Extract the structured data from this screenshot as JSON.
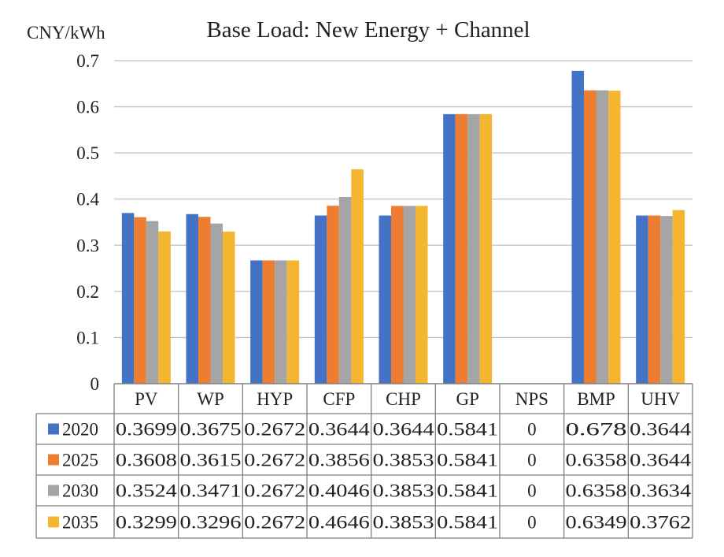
{
  "chart_data": {
    "type": "bar",
    "title": "Base Load: New Energy + Channel",
    "ylabel": "CNY/kWh",
    "xlabel": "",
    "categories": [
      "PV",
      "WP",
      "HYP",
      "CFP",
      "CHP",
      "GP",
      "NPS",
      "BMP",
      "UHV"
    ],
    "ylim": [
      0,
      0.7
    ],
    "yticks": [
      "0",
      "0.1",
      "0.2",
      "0.3",
      "0.4",
      "0.5",
      "0.6",
      "0.7"
    ],
    "grid": true,
    "legend": "bottom-left",
    "data_table": true,
    "series": [
      {
        "name": "2020",
        "color": "#4472C4",
        "values": [
          0.3699,
          0.3675,
          0.2672,
          0.3644,
          0.3644,
          0.5841,
          0,
          0.678,
          0.3644
        ]
      },
      {
        "name": "2025",
        "color": "#ED7D31",
        "values": [
          0.3608,
          0.3615,
          0.2672,
          0.3856,
          0.3853,
          0.5841,
          0,
          0.6358,
          0.3644
        ]
      },
      {
        "name": "2030",
        "color": "#A5A5A5",
        "values": [
          0.3524,
          0.3471,
          0.2672,
          0.4046,
          0.3853,
          0.5841,
          0,
          0.6358,
          0.3634
        ]
      },
      {
        "name": "2035",
        "color": "#F4B530",
        "values": [
          0.3299,
          0.3296,
          0.2672,
          0.4646,
          0.3853,
          0.5841,
          0,
          0.6349,
          0.3762
        ]
      }
    ],
    "table_cells": [
      [
        "0.3699",
        "0.3675",
        "0.2672",
        "0.3644",
        "0.3644",
        "0.5841",
        "0",
        "0.678",
        "0.3644"
      ],
      [
        "0.3608",
        "0.3615",
        "0.2672",
        "0.3856",
        "0.3853",
        "0.5841",
        "0",
        "0.6358",
        "0.3644"
      ],
      [
        "0.3524",
        "0.3471",
        "0.2672",
        "0.4046",
        "0.3853",
        "0.5841",
        "0",
        "0.6358",
        "0.3634"
      ],
      [
        "0.3299",
        "0.3296",
        "0.2672",
        "0.4646",
        "0.3853",
        "0.5841",
        "0",
        "0.6349",
        "0.3762"
      ]
    ]
  }
}
